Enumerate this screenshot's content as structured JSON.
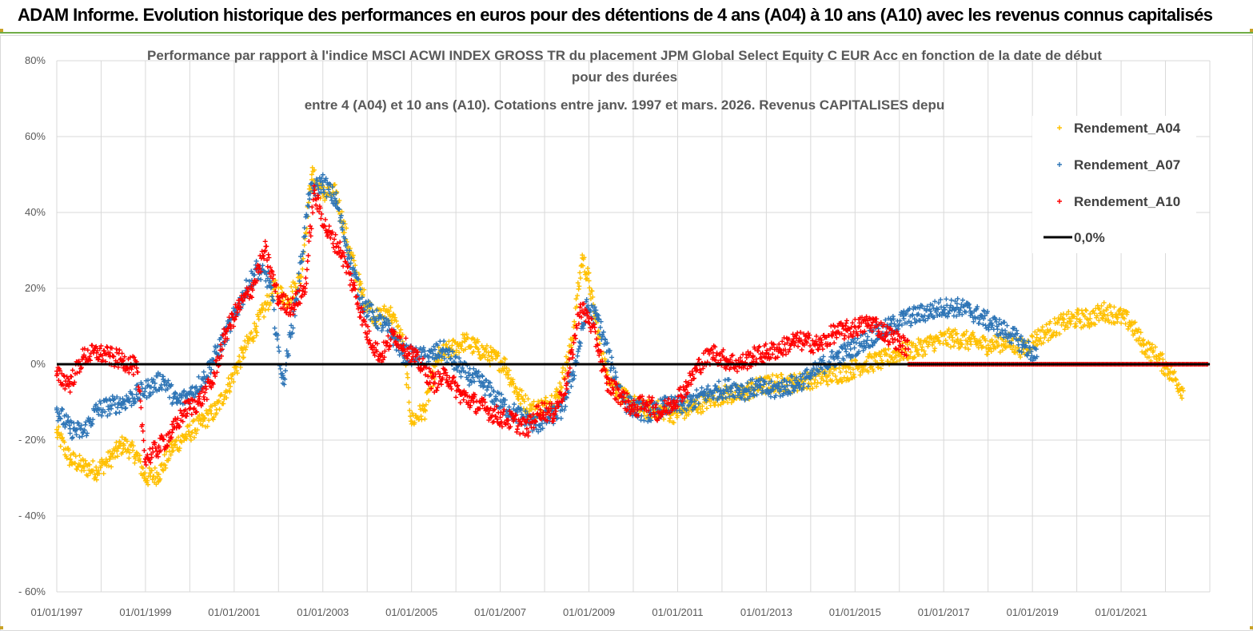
{
  "banner": {
    "text": "ADAM Informe. Evolution historique des performances en euros pour des détentions de 4 ans (A04) à 10 ans (A10) avec les revenus connus capitalisés"
  },
  "colors": {
    "A04": "#ffc000",
    "A07": "#2e75b6",
    "A10": "#ff0000",
    "zero_line": "#000000",
    "grid": "#d9d9d9",
    "banner_border": "#70ad47"
  },
  "chart_data": {
    "type": "scatter",
    "title_lines": [
      "Performance par rapport à l'indice MSCI ACWI INDEX GROSS TR  du placement JPM Global Select Equity C EUR Acc en fonction de la date de début",
      "pour des durées",
      "entre 4 (A04) et 10 ans (A10). Cotations entre janv. 1997 et mars. 2026. Revenus CAPITALISES depu"
    ],
    "x_start_year": 1997,
    "x_end_year": 2023,
    "x_tick_years": [
      1997,
      1999,
      2001,
      2003,
      2005,
      2007,
      2009,
      2011,
      2013,
      2015,
      2017,
      2019,
      2021
    ],
    "x_tick_labels": [
      "01/01/1997",
      "01/01/1999",
      "01/01/2001",
      "01/01/2003",
      "01/01/2005",
      "01/01/2007",
      "01/01/2009",
      "01/01/2011",
      "01/01/2013",
      "01/01/2015",
      "01/01/2017",
      "01/01/2019",
      "01/01/2021"
    ],
    "y_range": [
      -60,
      80
    ],
    "y_ticks": [
      80,
      60,
      40,
      20,
      0,
      -20,
      -40,
      -60
    ],
    "y_tick_labels": [
      "80%",
      "60%",
      "40%",
      "20%",
      "0%",
      "- 20%",
      "- 40%",
      "- 60%"
    ],
    "reference_line": {
      "name": "0,0%",
      "value": 0
    },
    "legend": [
      "Rendement_A04",
      "Rendement_A07",
      "Rendement_A10",
      "0,0%"
    ],
    "series": [
      {
        "name": "Rendement_A04",
        "color_key": "A04",
        "x": [
          1997.0,
          1997.3,
          1997.6,
          1997.9,
          1998.2,
          1998.5,
          1998.8,
          1999.0,
          1999.3,
          1999.6,
          1999.9,
          2000.3,
          2000.6,
          2000.9,
          2001.2,
          2001.5,
          2001.9,
          2002.2,
          2002.5,
          2002.75,
          2003.0,
          2003.3,
          2003.6,
          2003.9,
          2004.2,
          2004.5,
          2004.8,
          2005.0,
          2005.3,
          2005.6,
          2005.9,
          2006.2,
          2006.5,
          2006.8,
          2007.1,
          2007.4,
          2007.7,
          2008.0,
          2008.3,
          2008.6,
          2008.85,
          2009.0,
          2009.2,
          2009.4,
          2009.6,
          2009.8,
          2010.2,
          2010.6,
          2010.9,
          2011.2,
          2011.6,
          2012.0,
          2012.4,
          2012.8,
          2013.2,
          2013.6,
          2014.0,
          2014.4,
          2014.8,
          2015.2,
          2015.6,
          2016.0,
          2016.4,
          2016.8,
          2017.2,
          2017.6,
          2018.0,
          2018.4,
          2018.8,
          2019.1,
          2019.4,
          2019.7,
          2020.0,
          2020.3,
          2020.6,
          2020.9,
          2021.2,
          2021.5,
          2021.8,
          2022.1,
          2022.4
        ],
        "y": [
          -18,
          -25,
          -27,
          -28,
          -25,
          -21,
          -24,
          -30,
          -29,
          -22,
          -19,
          -15,
          -12,
          -5,
          3,
          10,
          20,
          17,
          23,
          50,
          45,
          45,
          30,
          18,
          12,
          14,
          6,
          -15,
          -12,
          2,
          4,
          6,
          4,
          2,
          0,
          -8,
          -12,
          -11,
          -8,
          5,
          28,
          22,
          8,
          -2,
          -6,
          -9,
          -12,
          -12,
          -13,
          -12,
          -10,
          -8,
          -8,
          -6,
          -5,
          -5,
          -4,
          -3,
          -2,
          0,
          1,
          3,
          4,
          6,
          7,
          6,
          5,
          6,
          4,
          7,
          9,
          11,
          12,
          12,
          14,
          13,
          11,
          5,
          2,
          -2,
          -7
        ]
      },
      {
        "name": "Rendement_A07",
        "color_key": "A07",
        "x": [
          1997.0,
          1997.3,
          1997.6,
          1997.9,
          1998.2,
          1998.5,
          1998.8,
          1999.1,
          1999.4,
          1999.7,
          2000.0,
          2000.3,
          2000.6,
          2000.9,
          2001.2,
          2001.5,
          2001.8,
          2002.1,
          2002.4,
          2002.7,
          2003.0,
          2003.3,
          2003.6,
          2003.9,
          2004.2,
          2004.5,
          2004.8,
          2005.1,
          2005.4,
          2005.7,
          2006.0,
          2006.3,
          2006.6,
          2006.9,
          2007.2,
          2007.5,
          2007.8,
          2008.1,
          2008.4,
          2008.7,
          2008.95,
          2009.2,
          2009.5,
          2009.8,
          2010.1,
          2010.4,
          2010.7,
          2011.0,
          2011.3,
          2011.6,
          2011.9,
          2012.2,
          2012.5,
          2012.8,
          2013.1,
          2013.4,
          2013.7,
          2014.0,
          2014.3,
          2014.6,
          2014.9,
          2015.2,
          2015.5,
          2015.8,
          2016.1,
          2016.4,
          2016.7,
          2017.0,
          2017.3,
          2017.6,
          2017.9,
          2018.2,
          2018.5,
          2018.8,
          2019.1
        ],
        "y": [
          -12,
          -17,
          -18,
          -12,
          -11,
          -10,
          -8,
          -6,
          -4,
          -10,
          -8,
          -4,
          3,
          10,
          18,
          25,
          22,
          -5,
          17,
          45,
          48,
          43,
          28,
          16,
          12,
          9,
          3,
          2,
          2,
          4,
          0,
          -3,
          -5,
          -9,
          -12,
          -14,
          -16,
          -14,
          -12,
          0,
          15,
          12,
          0,
          -10,
          -12,
          -13,
          -11,
          -11,
          -10,
          -8,
          -7,
          -6,
          -7,
          -6,
          -7,
          -6,
          -5,
          -3,
          0,
          2,
          4,
          6,
          8,
          10,
          12,
          13,
          14,
          15,
          15,
          14,
          12,
          10,
          8,
          5,
          2
        ]
      },
      {
        "name": "Rendement_A10",
        "color_key": "A10",
        "x": [
          1997.0,
          1997.3,
          1997.6,
          1997.9,
          1998.2,
          1998.5,
          1998.8,
          1999.0,
          1999.3,
          1999.6,
          1999.9,
          2000.2,
          2000.5,
          2000.8,
          2001.1,
          2001.4,
          2001.7,
          2002.0,
          2002.3,
          2002.6,
          2002.8,
          2003.1,
          2003.4,
          2003.7,
          2004.0,
          2004.3,
          2004.6,
          2004.9,
          2005.2,
          2005.5,
          2005.8,
          2006.1,
          2006.4,
          2006.7,
          2007.0,
          2007.3,
          2007.6,
          2007.9,
          2008.2,
          2008.5,
          2008.8,
          2009.0,
          2009.2,
          2009.4,
          2009.7,
          2010.0,
          2010.3,
          2010.6,
          2010.9,
          2011.2,
          2011.5,
          2011.8,
          2012.1,
          2012.4,
          2012.7,
          2013.0,
          2013.3,
          2013.6,
          2013.9,
          2014.2,
          2014.5,
          2014.8,
          2015.1,
          2015.4,
          2015.7,
          2016.0,
          2016.2
        ],
        "y": [
          -3,
          -5,
          2,
          3,
          2,
          1,
          -1,
          -25,
          -22,
          -18,
          -12,
          -10,
          -5,
          8,
          15,
          20,
          30,
          17,
          15,
          20,
          45,
          35,
          30,
          20,
          8,
          2,
          8,
          4,
          0,
          -5,
          -3,
          -8,
          -10,
          -12,
          -14,
          -15,
          -17,
          -12,
          -13,
          -5,
          15,
          12,
          5,
          -5,
          -8,
          -12,
          -10,
          -13,
          -10,
          -6,
          0,
          3,
          1,
          0,
          2,
          3,
          4,
          6,
          6,
          5,
          8,
          9,
          10,
          11,
          8,
          6,
          4
        ]
      }
    ]
  }
}
